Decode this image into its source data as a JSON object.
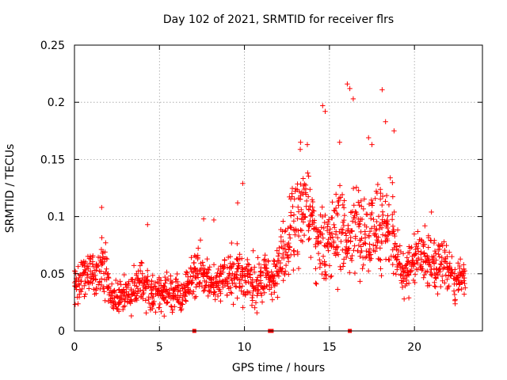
{
  "chart_data": {
    "type": "scatter",
    "title": "Day 102 of 2021, SRMTID for receiver flrs",
    "xlabel": "GPS time / hours",
    "ylabel": "SRMTID / TECUs",
    "xlim": [
      0,
      24
    ],
    "ylim": [
      0,
      0.25
    ],
    "x_ticks": [
      0,
      5,
      10,
      15,
      20
    ],
    "y_ticks": [
      0,
      0.05,
      0.1,
      0.15,
      0.2,
      0.25
    ],
    "x_tick_labels": [
      "0",
      "5",
      "10",
      "15",
      "20"
    ],
    "y_tick_labels": [
      "0",
      "0.05",
      "0.1",
      "0.15",
      "0.2",
      "0.25"
    ],
    "grid": true,
    "marker": "+",
    "series": [
      {
        "name": "SRMTID",
        "color": "#ff0000",
        "marker": "+",
        "x": [
          0.0,
          0.2,
          0.4,
          0.6,
          0.8,
          1.0,
          1.2,
          1.4,
          1.6,
          1.8,
          2.0,
          2.2,
          2.4,
          2.6,
          2.8,
          3.0,
          3.2,
          3.4,
          3.6,
          3.8,
          4.0,
          4.2,
          4.4,
          4.6,
          4.8,
          5.0,
          5.2,
          5.4,
          5.6,
          5.8,
          6.0,
          6.2,
          6.4,
          6.6,
          6.8,
          7.0,
          7.2,
          7.4,
          7.6,
          7.8,
          8.0,
          8.2,
          8.4,
          8.6,
          8.8,
          9.0,
          9.2,
          9.4,
          9.6,
          9.8,
          10.0,
          10.2,
          10.4,
          10.6,
          10.8,
          11.0,
          11.2,
          11.4,
          11.6,
          11.8,
          12.0,
          12.2,
          12.4,
          12.6,
          12.8,
          13.0,
          13.2,
          13.4,
          13.6,
          13.8,
          14.0,
          14.2,
          14.4,
          14.6,
          14.8,
          15.0,
          15.2,
          15.4,
          15.6,
          15.8,
          16.0,
          16.2,
          16.4,
          16.6,
          16.8,
          17.0,
          17.2,
          17.4,
          17.6,
          17.8,
          18.0,
          18.2,
          18.4,
          18.6,
          18.8,
          19.0,
          19.2,
          19.4,
          19.6,
          19.8,
          20.0,
          20.2,
          20.4,
          20.6,
          20.8,
          21.0,
          21.2,
          21.4,
          21.6,
          21.8,
          22.0,
          22.2,
          22.4,
          22.6,
          22.8,
          23.0
        ],
        "y": [
          0.04,
          0.035,
          0.045,
          0.05,
          0.055,
          0.05,
          0.045,
          0.05,
          0.06,
          0.055,
          0.04,
          0.03,
          0.03,
          0.025,
          0.03,
          0.035,
          0.03,
          0.035,
          0.035,
          0.04,
          0.045,
          0.04,
          0.04,
          0.035,
          0.035,
          0.035,
          0.03,
          0.035,
          0.035,
          0.03,
          0.035,
          0.03,
          0.03,
          0.035,
          0.04,
          0.045,
          0.05,
          0.055,
          0.05,
          0.05,
          0.045,
          0.04,
          0.04,
          0.045,
          0.05,
          0.045,
          0.05,
          0.05,
          0.055,
          0.05,
          0.045,
          0.05,
          0.04,
          0.045,
          0.04,
          0.045,
          0.05,
          0.05,
          0.045,
          0.05,
          0.055,
          0.07,
          0.075,
          0.08,
          0.09,
          0.1,
          0.1,
          0.105,
          0.11,
          0.095,
          0.09,
          0.085,
          0.075,
          0.07,
          0.065,
          0.08,
          0.085,
          0.09,
          0.1,
          0.095,
          0.075,
          0.08,
          0.1,
          0.1,
          0.09,
          0.085,
          0.08,
          0.085,
          0.085,
          0.09,
          0.09,
          0.095,
          0.085,
          0.095,
          0.08,
          0.07,
          0.05,
          0.045,
          0.05,
          0.055,
          0.06,
          0.065,
          0.065,
          0.07,
          0.065,
          0.06,
          0.06,
          0.055,
          0.055,
          0.06,
          0.05,
          0.05,
          0.045,
          0.045,
          0.045,
          0.04
        ],
        "spread": [
          0.012,
          0.012,
          0.012,
          0.014,
          0.014,
          0.016,
          0.016,
          0.016,
          0.016,
          0.016,
          0.012,
          0.01,
          0.01,
          0.01,
          0.01,
          0.012,
          0.012,
          0.012,
          0.012,
          0.012,
          0.014,
          0.014,
          0.012,
          0.012,
          0.012,
          0.012,
          0.012,
          0.012,
          0.012,
          0.012,
          0.012,
          0.012,
          0.012,
          0.012,
          0.012,
          0.014,
          0.014,
          0.014,
          0.014,
          0.014,
          0.014,
          0.014,
          0.014,
          0.014,
          0.014,
          0.014,
          0.016,
          0.016,
          0.016,
          0.016,
          0.016,
          0.016,
          0.016,
          0.016,
          0.016,
          0.014,
          0.014,
          0.014,
          0.014,
          0.014,
          0.016,
          0.02,
          0.024,
          0.025,
          0.025,
          0.028,
          0.028,
          0.028,
          0.028,
          0.028,
          0.028,
          0.028,
          0.025,
          0.025,
          0.025,
          0.028,
          0.03,
          0.032,
          0.032,
          0.03,
          0.025,
          0.025,
          0.025,
          0.028,
          0.028,
          0.028,
          0.025,
          0.025,
          0.025,
          0.028,
          0.028,
          0.028,
          0.025,
          0.025,
          0.025,
          0.02,
          0.014,
          0.014,
          0.014,
          0.014,
          0.016,
          0.018,
          0.018,
          0.018,
          0.018,
          0.016,
          0.016,
          0.016,
          0.016,
          0.016,
          0.014,
          0.014,
          0.012,
          0.012,
          0.012,
          0.012
        ]
      }
    ],
    "outliers": {
      "x": [
        1.6,
        4.3,
        7.6,
        8.2,
        9.6,
        9.9,
        13.3,
        13.7,
        14.6,
        14.75,
        15.6,
        16.05,
        16.2,
        16.4,
        17.3,
        17.5,
        18.1,
        18.3,
        18.8,
        21.0
      ],
      "y": [
        0.108,
        0.093,
        0.098,
        0.097,
        0.112,
        0.129,
        0.165,
        0.163,
        0.197,
        0.192,
        0.165,
        0.216,
        0.212,
        0.203,
        0.169,
        0.163,
        0.211,
        0.183,
        0.175,
        0.104
      ]
    },
    "baseline_marks": [
      7.05,
      11.5,
      11.6,
      16.2
    ]
  }
}
